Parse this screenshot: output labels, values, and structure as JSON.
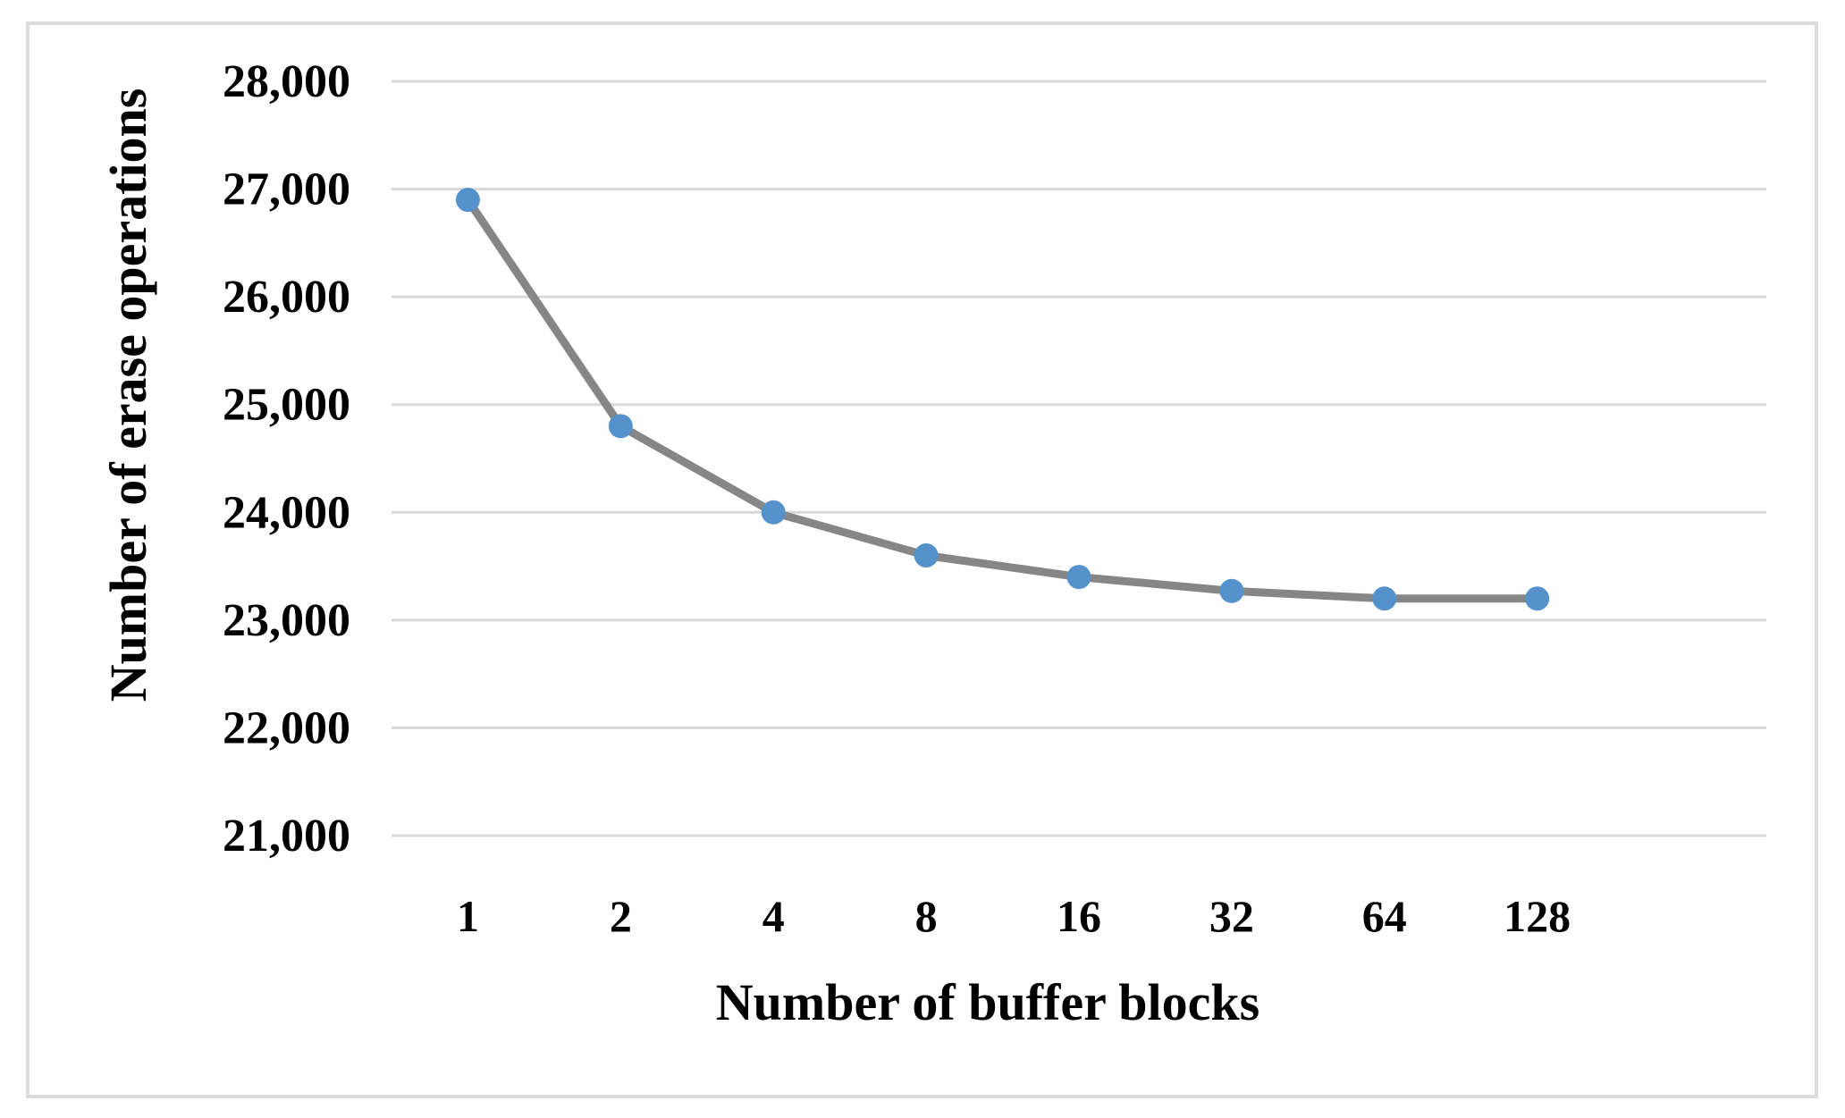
{
  "figure": {
    "background": "#FFFFFF",
    "frame_border_color": "#DCDCDC",
    "gridline_color": "#D9D9D9"
  },
  "chart_data": {
    "type": "line",
    "title": "",
    "xlabel": "Number of buffer blocks",
    "ylabel": "Number of erase operations",
    "categories": [
      "1",
      "2",
      "4",
      "8",
      "16",
      "32",
      "64",
      "128"
    ],
    "series": [
      {
        "name": "Number of erase operations",
        "values": [
          26900,
          24800,
          24000,
          23600,
          23400,
          23270,
          23200,
          23200
        ],
        "line_color": "#868686",
        "marker_color": "#5592CB",
        "marker_shape": "circle"
      }
    ],
    "ylim": [
      21000,
      28000
    ],
    "ytick_step": 1000,
    "ytick_labels": [
      "21,000",
      "22,000",
      "23,000",
      "24,000",
      "25,000",
      "26,000",
      "27,000",
      "28,000"
    ],
    "grid": "horizontal-only",
    "legend": "none",
    "axis_lines": "none"
  }
}
